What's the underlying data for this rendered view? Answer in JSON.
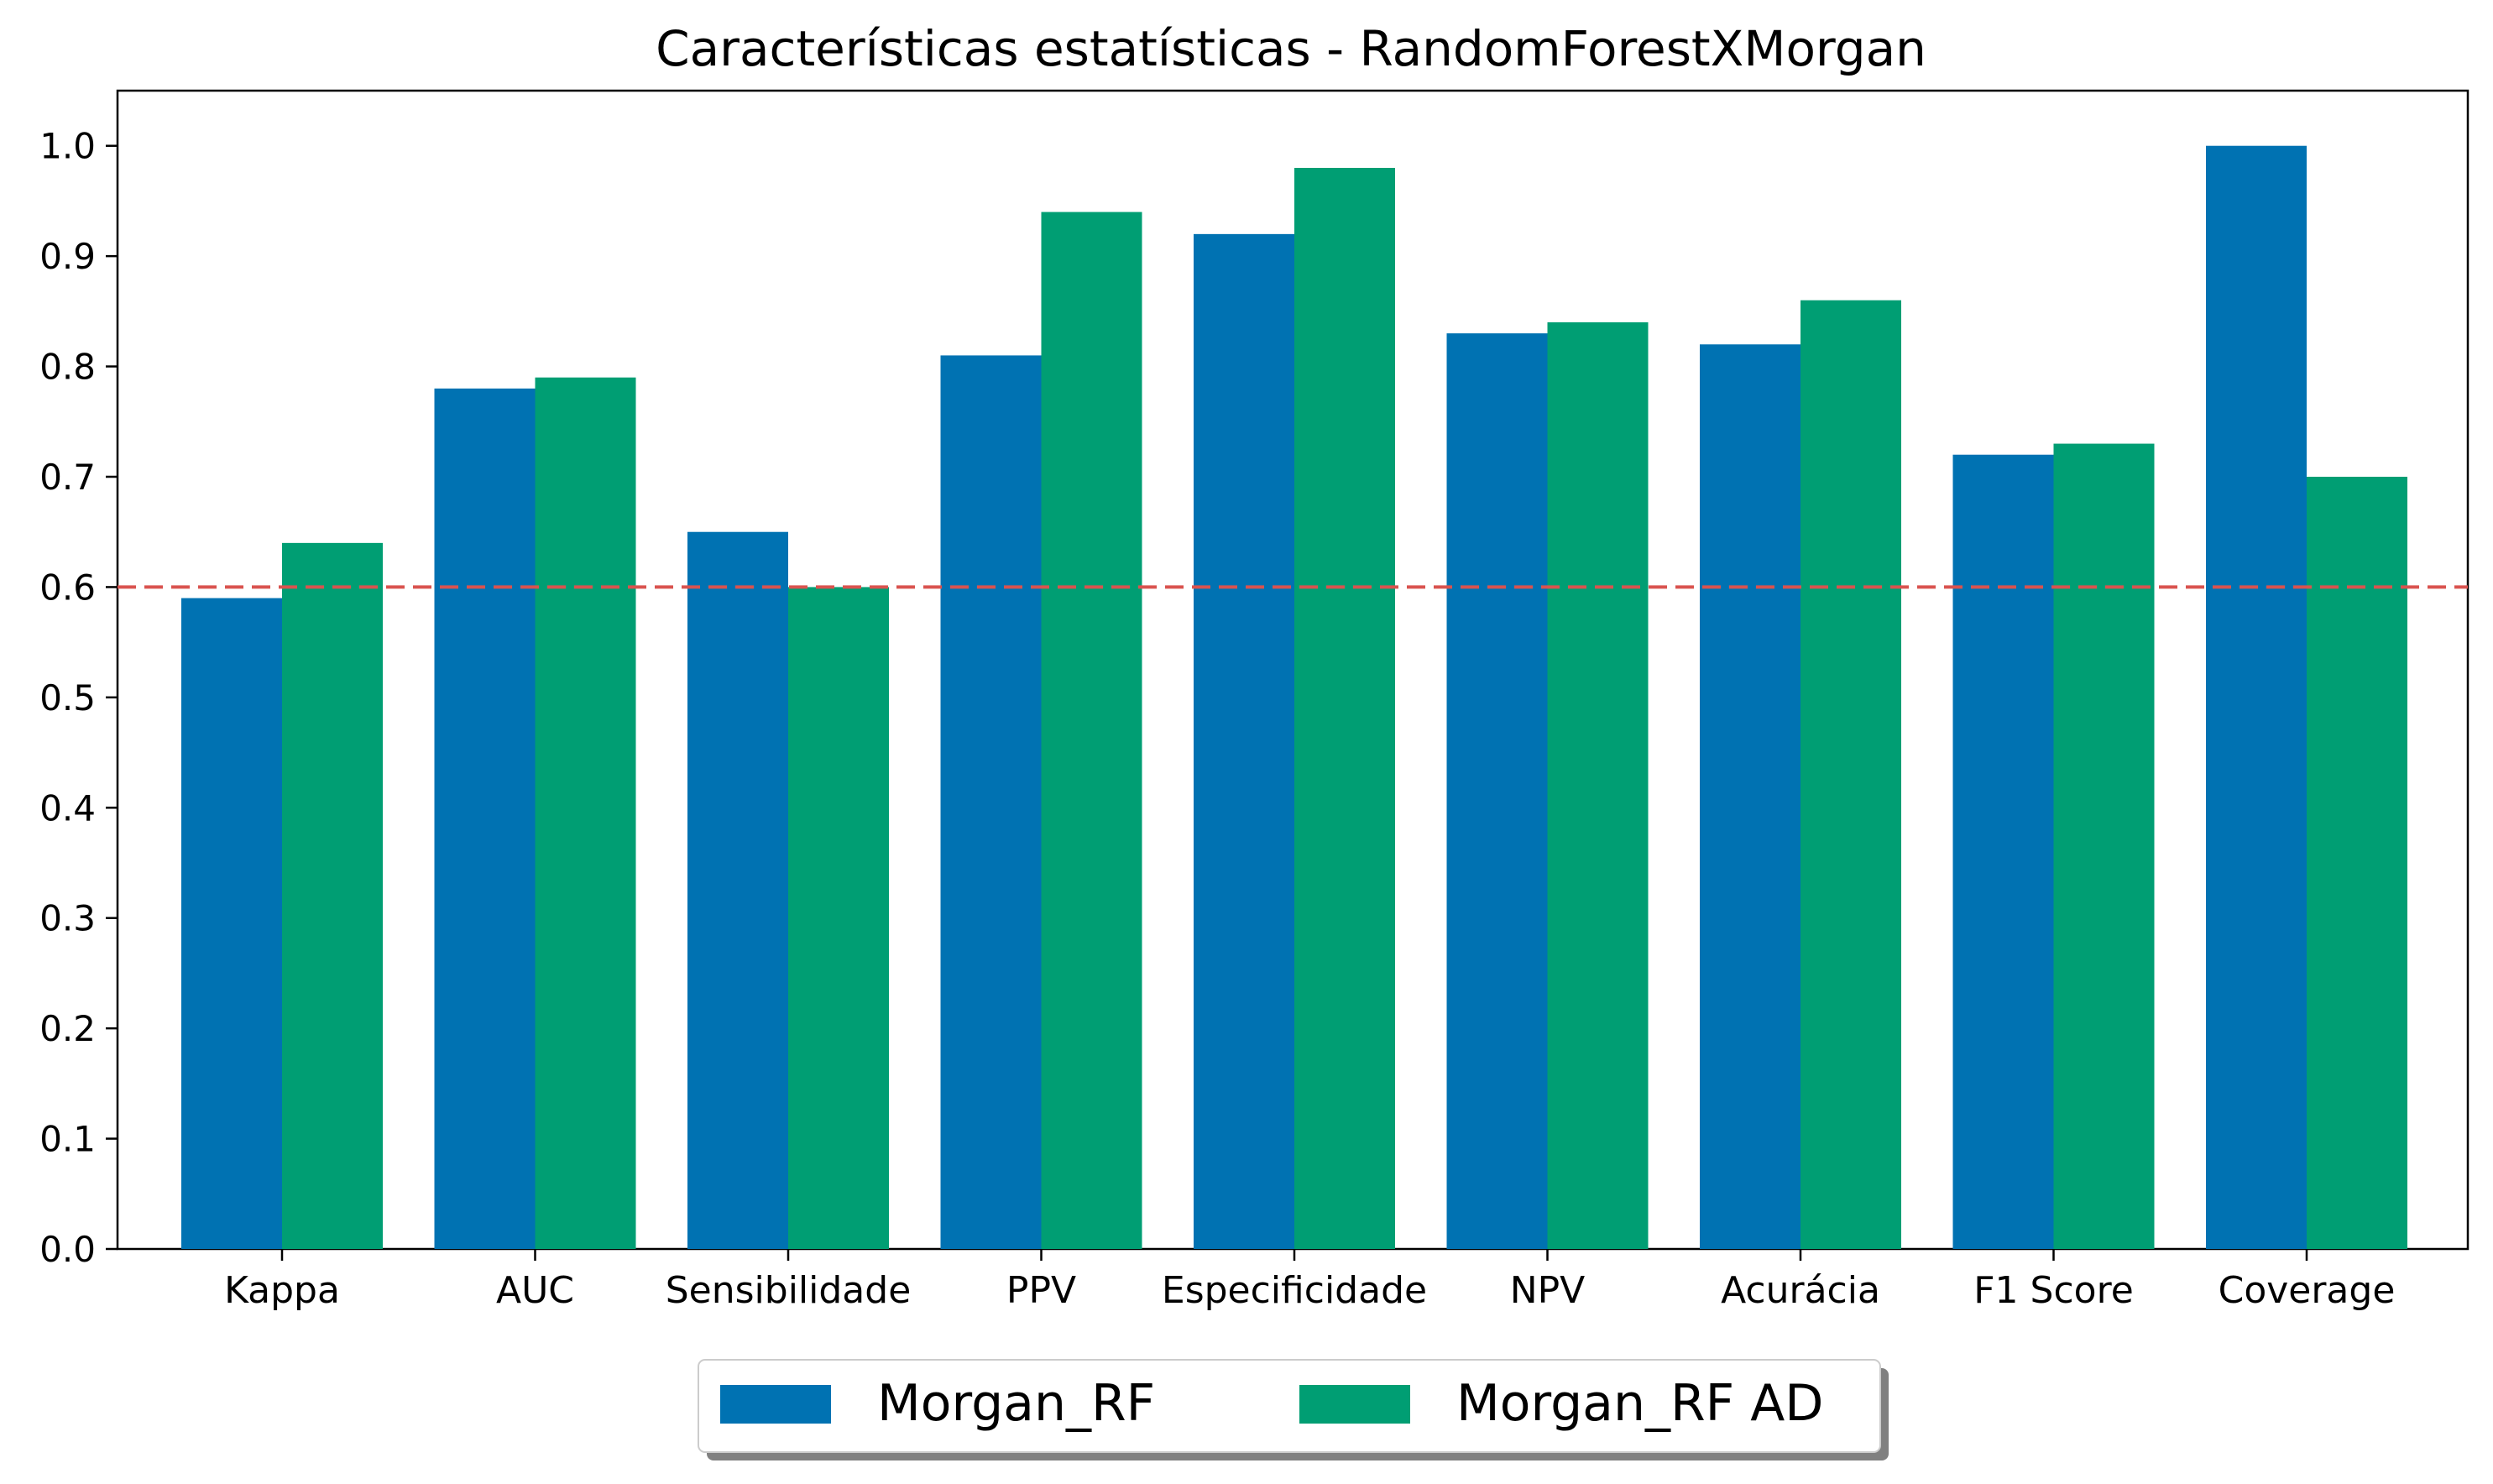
{
  "chart_data": {
    "type": "bar",
    "title": "Características estatísticas - RandomForestXMorgan",
    "xlabel": "",
    "ylabel": "",
    "categories": [
      "Kappa",
      "AUC",
      "Sensibilidade",
      "PPV",
      "Especificidade",
      "NPV",
      "Acurácia",
      "F1 Score",
      "Coverage"
    ],
    "series": [
      {
        "name": "Morgan_RF",
        "color": "#0072b2",
        "values": [
          0.59,
          0.78,
          0.65,
          0.81,
          0.92,
          0.83,
          0.82,
          0.72,
          1.0
        ]
      },
      {
        "name": "Morgan_RF AD",
        "color": "#009e73",
        "values": [
          0.64,
          0.79,
          0.6,
          0.94,
          0.98,
          0.84,
          0.86,
          0.73,
          0.7
        ]
      }
    ],
    "ylim": [
      0.0,
      1.05
    ],
    "yticks": [
      "0.0",
      "0.1",
      "0.2",
      "0.3",
      "0.4",
      "0.5",
      "0.6",
      "0.7",
      "0.8",
      "0.9",
      "1.0"
    ],
    "reference_line": {
      "y": 0.6,
      "style": "dashed",
      "color": "#d9534f"
    },
    "grid": false,
    "legend": {
      "placement": "bottom-center",
      "shadow": true
    }
  }
}
